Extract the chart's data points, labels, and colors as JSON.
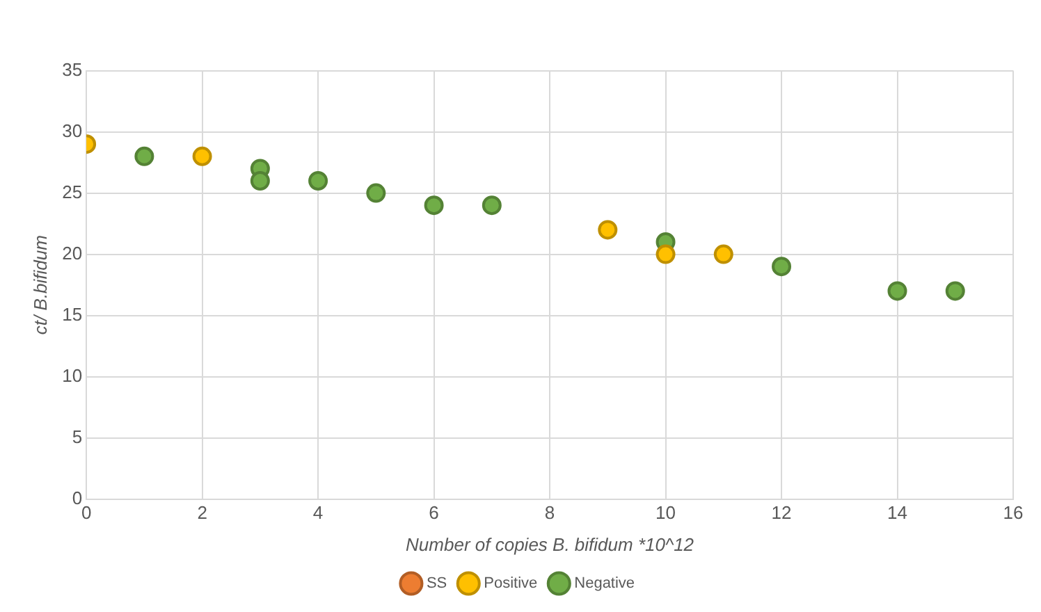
{
  "chart_data": {
    "type": "scatter",
    "xlabel": "Number of copies B. bifidum *10^12",
    "ylabel": "ct/ B.bifidum",
    "xlim": [
      0,
      16
    ],
    "xticks": [
      0,
      2,
      4,
      6,
      8,
      10,
      12,
      14,
      16
    ],
    "ylim": [
      0,
      35
    ],
    "yticks": [
      0,
      5,
      10,
      15,
      20,
      25,
      30,
      35
    ],
    "grid": true,
    "legend": "bottom",
    "marker": "circle",
    "series": [
      {
        "name": "SS",
        "color": "#ed7d31"
      },
      {
        "name": "Positive",
        "color": "#ffc000",
        "x": [
          0,
          2,
          9,
          10,
          11
        ],
        "values": [
          29,
          28,
          22,
          20,
          20
        ]
      },
      {
        "name": "Negative",
        "color": "#70ad47",
        "x": [
          1,
          3,
          3,
          4,
          5,
          6,
          7,
          10,
          12,
          14,
          15
        ],
        "values": [
          28,
          27,
          26,
          26,
          25,
          24,
          24,
          21,
          19,
          17,
          17
        ]
      }
    ]
  }
}
